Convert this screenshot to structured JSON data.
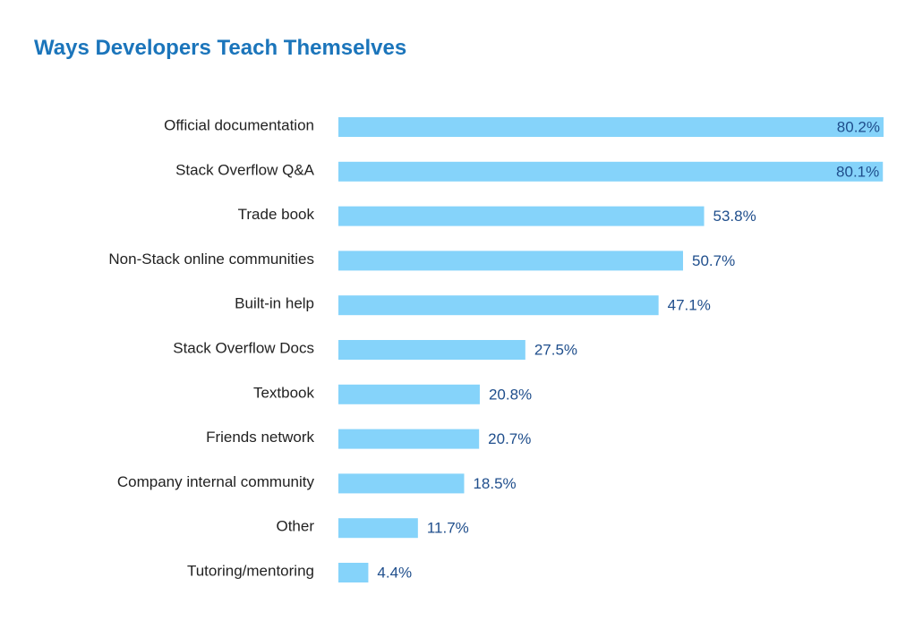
{
  "chart_data": {
    "type": "bar",
    "orientation": "horizontal",
    "title": "Ways Developers Teach Themselves",
    "categories": [
      "Official documentation",
      "Stack Overflow Q&A",
      "Trade book",
      "Non-Stack online communities",
      "Built-in help",
      "Stack Overflow Docs",
      "Textbook",
      "Friends network",
      "Company internal community",
      "Other",
      "Tutoring/mentoring"
    ],
    "values": [
      80.2,
      80.1,
      53.8,
      50.7,
      47.1,
      27.5,
      20.8,
      20.7,
      18.5,
      11.7,
      4.4
    ],
    "value_labels": [
      "80.2%",
      "80.1%",
      "53.8%",
      "50.7%",
      "47.1%",
      "27.5%",
      "20.8%",
      "20.7%",
      "18.5%",
      "11.7%",
      "4.4%"
    ],
    "xlim": [
      0,
      80.2
    ],
    "grid": false,
    "legend": "none",
    "colors": {
      "bar": "#85d3fa",
      "title": "#1b75bb",
      "value_label": "#1f4e8c",
      "category_label": "#222222"
    }
  }
}
